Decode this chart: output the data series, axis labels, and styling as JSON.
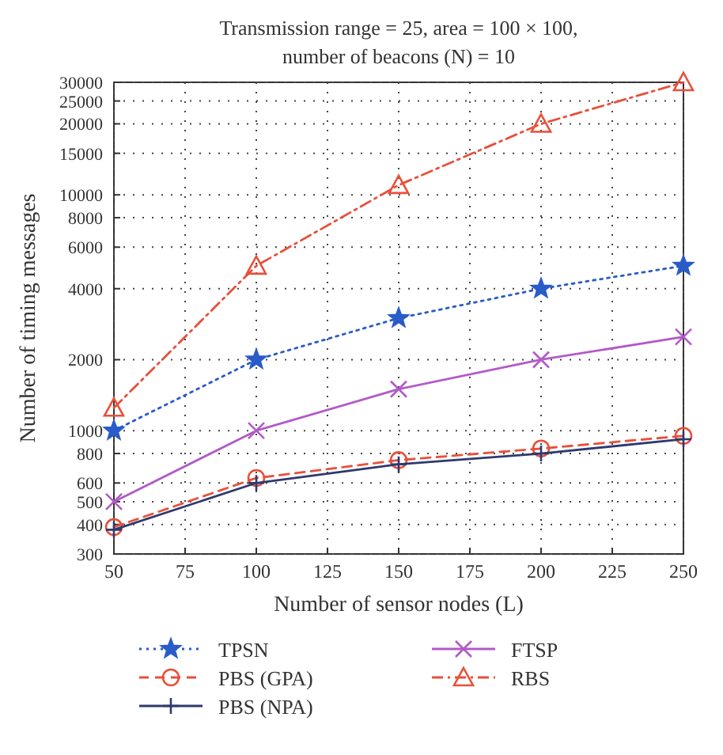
{
  "chart_data": {
    "type": "line",
    "title": "Transmission range = 25, area = 100 × 100,\nnumber of beacons (N) = 10",
    "xlabel": "Number of sensor nodes (L)",
    "ylabel": "Number of timing messages",
    "x": [
      50,
      100,
      150,
      200,
      250
    ],
    "series": [
      {
        "name": "TPSN",
        "color": "#2a5cc8",
        "values": [
          1000,
          2000,
          3000,
          4000,
          5000
        ],
        "marker": "star",
        "line_style": "dotted"
      },
      {
        "name": "FTSP",
        "color": "#b25ac8",
        "values": [
          500,
          1000,
          1500,
          2000,
          2500
        ],
        "marker": "x",
        "line_style": "solid"
      },
      {
        "name": "PBS (GPA)",
        "color": "#e8503a",
        "values": [
          390,
          630,
          750,
          840,
          950
        ],
        "marker": "circle",
        "line_style": "dashed"
      },
      {
        "name": "RBS",
        "color": "#e8503a",
        "values": [
          1250,
          5000,
          11000,
          20000,
          30000
        ],
        "marker": "triangle",
        "line_style": "dashdot"
      },
      {
        "name": "PBS (NPA)",
        "color": "#2e3a6e",
        "values": [
          380,
          600,
          720,
          800,
          920
        ],
        "marker": "plus",
        "line_style": "solid"
      }
    ],
    "xlim": [
      50,
      250
    ],
    "xticks": [
      50,
      75,
      100,
      125,
      150,
      175,
      200,
      225,
      250
    ],
    "ylim": [
      300,
      30000
    ],
    "yticks": [
      300,
      400,
      500,
      600,
      800,
      1000,
      2000,
      4000,
      6000,
      8000,
      10000,
      15000,
      20000,
      25000,
      30000
    ],
    "log": "y",
    "grid": true,
    "legend": "bottom"
  }
}
